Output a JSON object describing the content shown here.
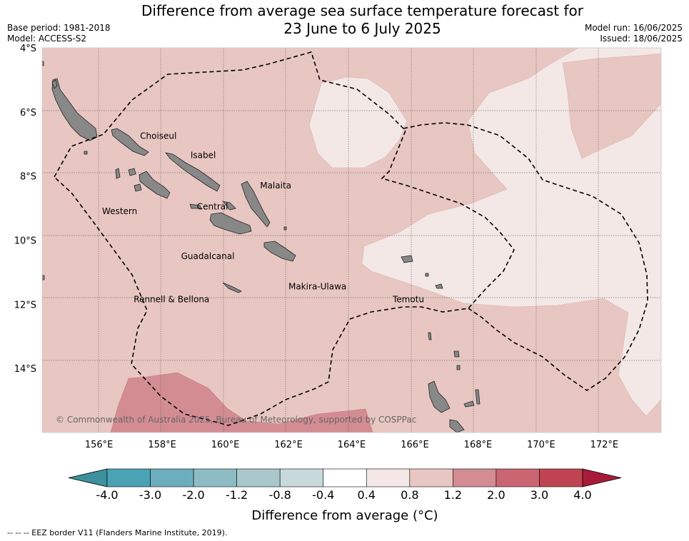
{
  "title": {
    "line1": "Difference from average sea surface temperature forecast for",
    "line2": "23 June to 6 July 2025"
  },
  "meta": {
    "base_period": "Base period: 1981-2018",
    "model": "Model: ACCESS-S2",
    "model_run": "Model run: 16/06/2025",
    "issued": "Issued: 18/06/2025"
  },
  "map": {
    "lon_range": [
      154.2,
      173.8
    ],
    "lat_range": [
      -16.0,
      -4.0
    ],
    "lat_ticks": [
      {
        "value": -4,
        "label": "4°S"
      },
      {
        "value": -6,
        "label": "6°S"
      },
      {
        "value": -8,
        "label": "8°S"
      },
      {
        "value": -10,
        "label": "10°S"
      },
      {
        "value": -12,
        "label": "12°S"
      },
      {
        "value": -14,
        "label": "14°S"
      }
    ],
    "lon_ticks": [
      {
        "value": 156,
        "label": "156°E"
      },
      {
        "value": 158,
        "label": "158°E"
      },
      {
        "value": 160,
        "label": "160°E"
      },
      {
        "value": 162,
        "label": "162°E"
      },
      {
        "value": 164,
        "label": "164°E"
      },
      {
        "value": 166,
        "label": "166°E"
      },
      {
        "value": 168,
        "label": "168°E"
      },
      {
        "value": 170,
        "label": "170°E"
      },
      {
        "value": 172,
        "label": "172°E"
      }
    ],
    "grid": true,
    "region_labels": [
      {
        "name": "Choiseul",
        "lon": 157.3,
        "lat": -6.75
      },
      {
        "name": "Isabel",
        "lon": 158.9,
        "lat": -7.35
      },
      {
        "name": "Malaita",
        "lon": 161.1,
        "lat": -8.3
      },
      {
        "name": "Western",
        "lon": 156.1,
        "lat": -9.1
      },
      {
        "name": "Central",
        "lon": 159.1,
        "lat": -8.95
      },
      {
        "name": "Guadalcanal",
        "lon": 158.6,
        "lat": -10.5
      },
      {
        "name": "Makira-Ulawa",
        "lon": 162.0,
        "lat": -11.45
      },
      {
        "name": "Rennell & Bellona",
        "lon": 157.1,
        "lat": -11.85
      },
      {
        "name": "Temotu",
        "lon": 165.3,
        "lat": -11.85
      }
    ],
    "credit": "© Commonwealth of Australia 2025, Bureau of Meteorology, supported by COSPPac",
    "colors": {
      "band_0.4_0.8": "#f4e8e6",
      "band_0.8_1.2": "#e8c7c2",
      "band_1.2_2.0": "#d48c93",
      "land": "#888888"
    }
  },
  "colorbar": {
    "label": "Difference from average (°C)",
    "tick_labels": [
      "-4.0",
      "-3.0",
      "-2.0",
      "-1.2",
      "-0.8",
      "-0.4",
      "0.4",
      "0.8",
      "1.2",
      "2.0",
      "3.0",
      "4.0"
    ],
    "colors": [
      "#3d919f",
      "#4aa3b5",
      "#6caebd",
      "#8dbcc5",
      "#a9c8cc",
      "#c8d9dc",
      "#ffffff",
      "#f4e8e6",
      "#e8c7c2",
      "#d48c93",
      "#c96672",
      "#bd4450",
      "#a81c3a"
    ]
  },
  "footer": "--  --  -- EEZ border V11 (Flanders Marine Institute, 2019)."
}
